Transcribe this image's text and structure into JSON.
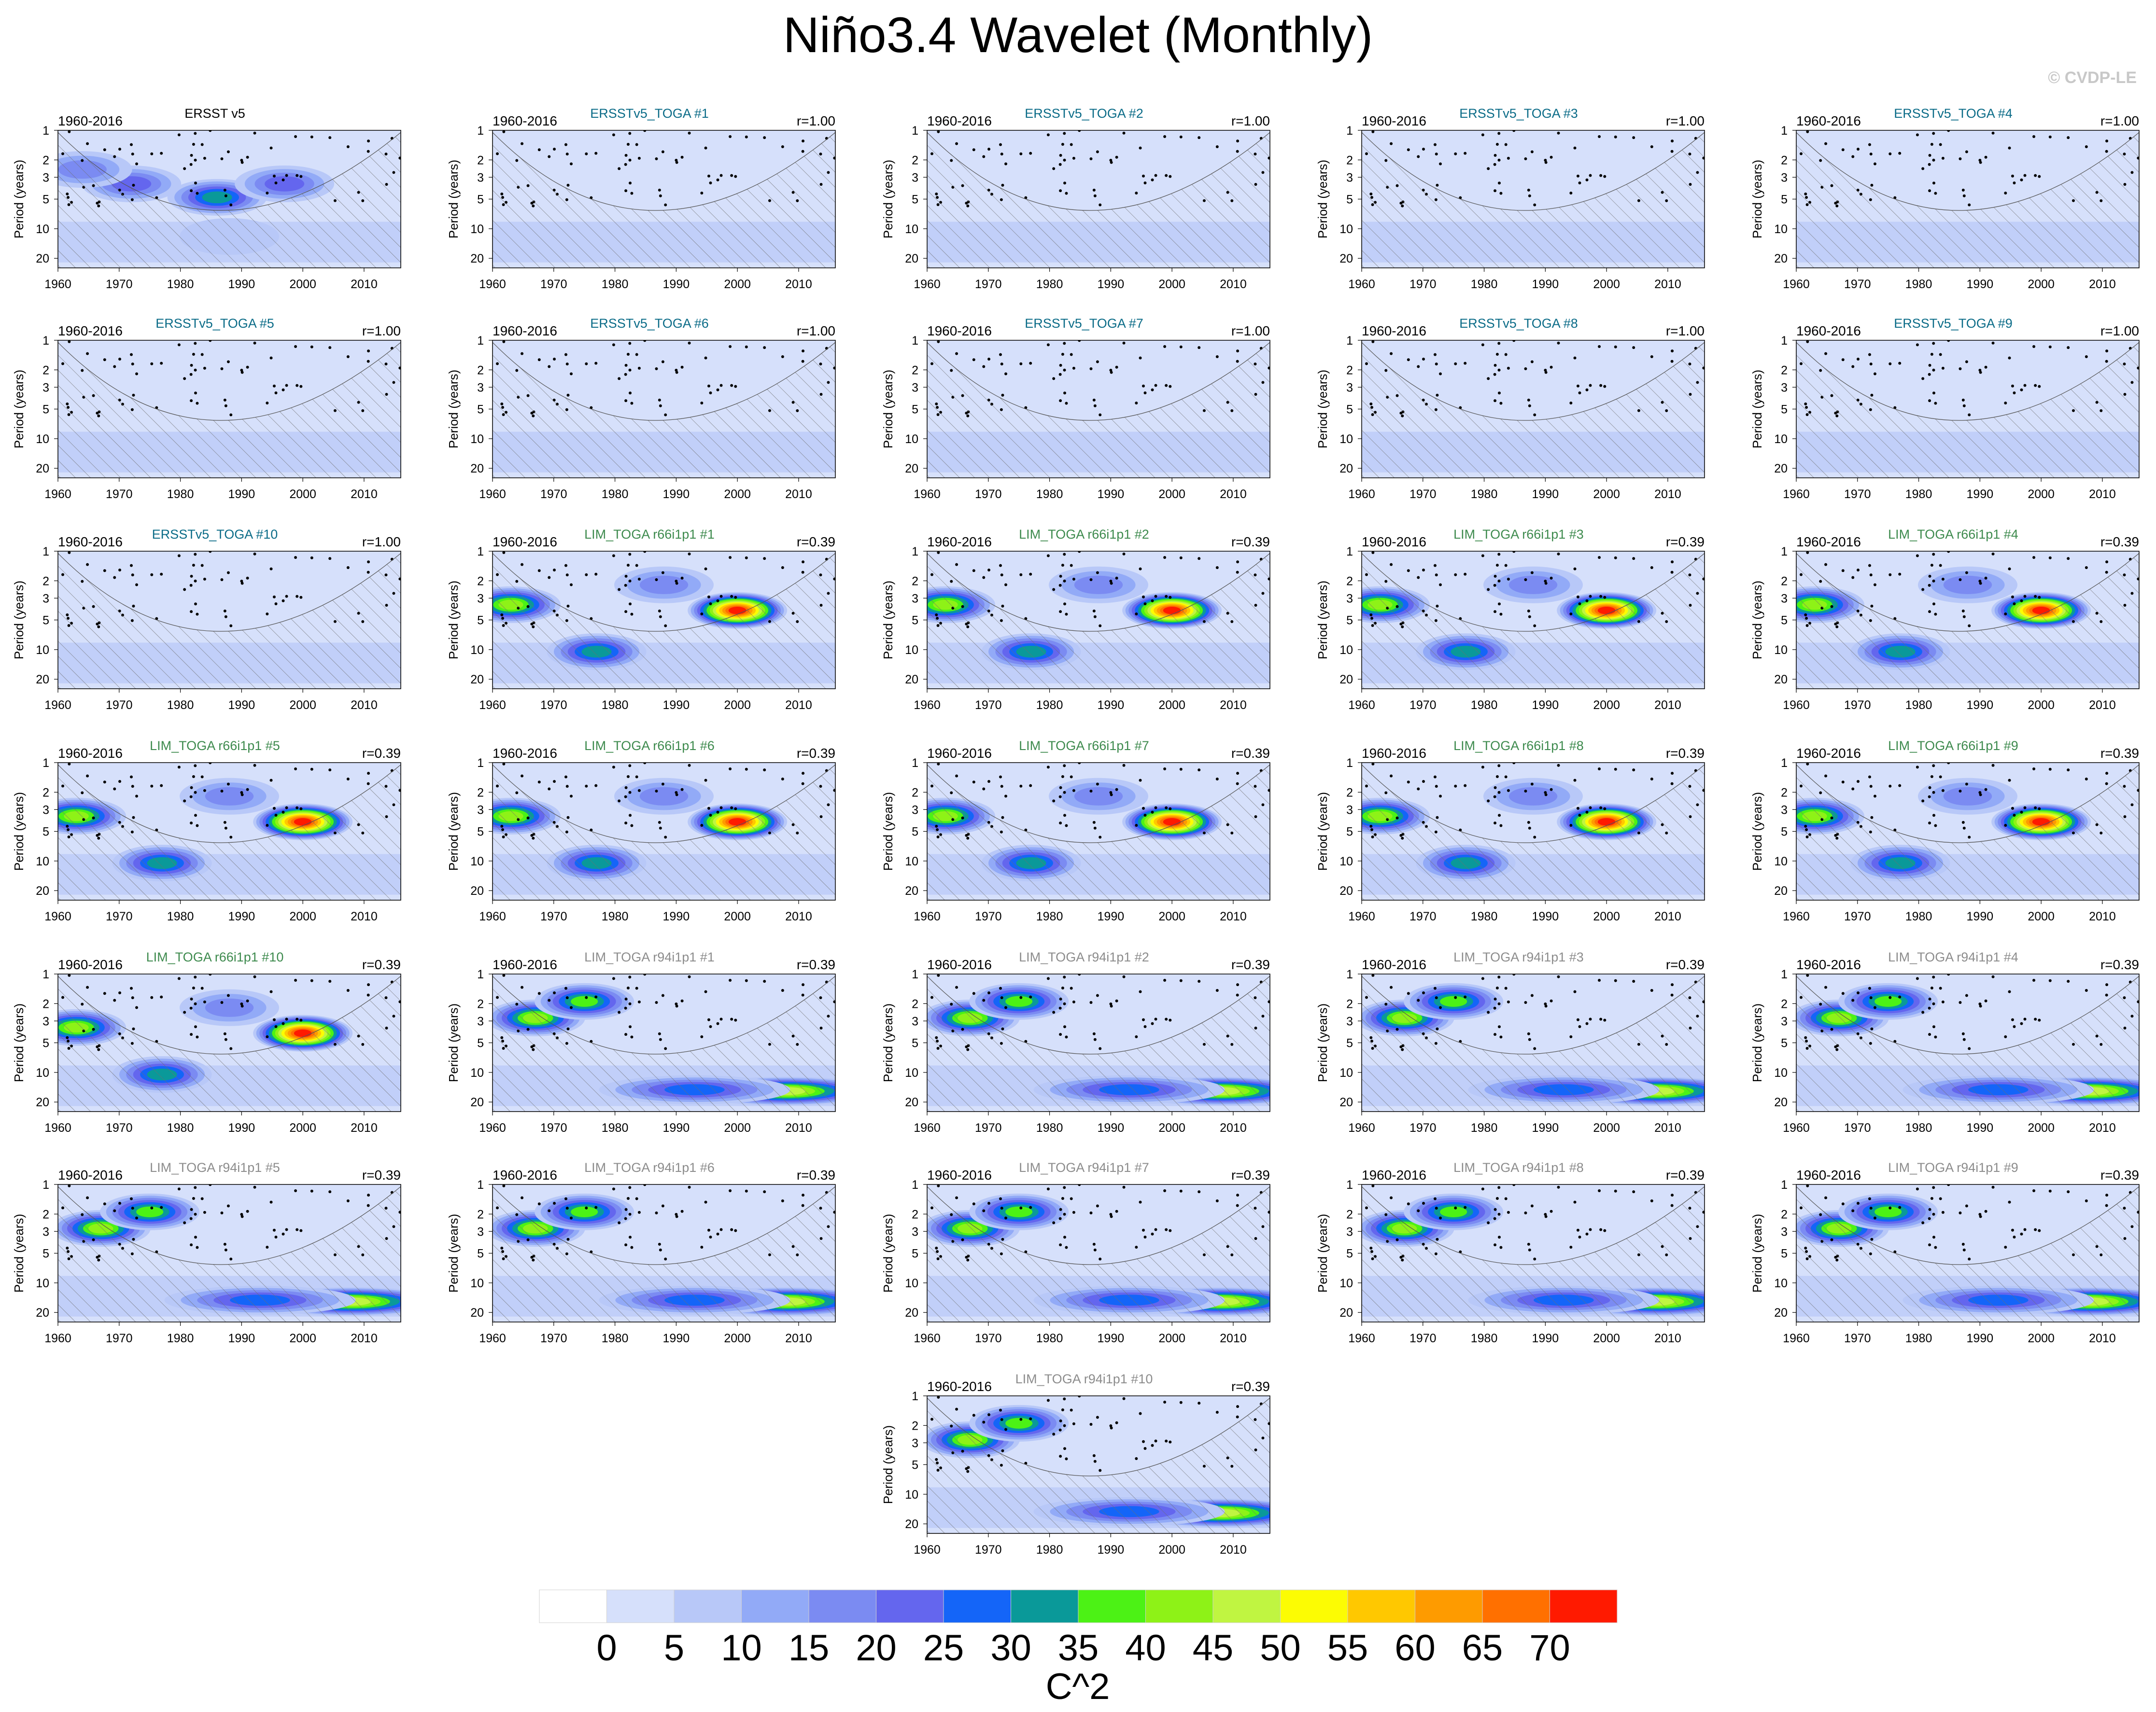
{
  "title": "Niño3.4 Wavelet (Monthly)",
  "credit": "© CVDP-LE",
  "colorbar": {
    "title": "C^2",
    "labels": [
      "0",
      "5",
      "10",
      "15",
      "20",
      "25",
      "30",
      "35",
      "40",
      "45",
      "50",
      "55",
      "60",
      "65",
      "70"
    ],
    "colors": [
      "#ffffff",
      "#d6e0fb",
      "#b8c8f8",
      "#92aaf7",
      "#7b8bf2",
      "#6466ee",
      "#1465f8",
      "#0a9999",
      "#4cf215",
      "#8ef217",
      "#c0f541",
      "#fcfc03",
      "#ffc800",
      "#fe9b00",
      "#ff7000",
      "#ff1a00"
    ]
  },
  "colors": {
    "obs_title": "#000000",
    "ersst_title": "#0a6b87",
    "r66_title": "#3d8a4d",
    "r94_title": "#8c8c8c",
    "hatch": "#6e6e6e"
  },
  "chart_data": {
    "type": "heatmap",
    "x_axis": {
      "ticks": [
        1960,
        1970,
        1980,
        1990,
        2000,
        2010
      ],
      "range": [
        1960,
        2016
      ]
    },
    "y_axis": {
      "label": "Period (years)",
      "scale": "log",
      "reversed": true,
      "ticks": [
        1,
        2,
        3,
        5,
        10,
        20
      ],
      "range": [
        1,
        25
      ]
    },
    "panels": [
      {
        "period": "1960-2016",
        "name": "ERSST v5",
        "r": "",
        "group": "obs"
      },
      {
        "period": "1960-2016",
        "name": "ERSSTv5_TOGA #1",
        "r": "r=1.00",
        "group": "ersst"
      },
      {
        "period": "1960-2016",
        "name": "ERSSTv5_TOGA #2",
        "r": "r=1.00",
        "group": "ersst"
      },
      {
        "period": "1960-2016",
        "name": "ERSSTv5_TOGA #3",
        "r": "r=1.00",
        "group": "ersst"
      },
      {
        "period": "1960-2016",
        "name": "ERSSTv5_TOGA #4",
        "r": "r=1.00",
        "group": "ersst"
      },
      {
        "period": "1960-2016",
        "name": "ERSSTv5_TOGA #5",
        "r": "r=1.00",
        "group": "ersst"
      },
      {
        "period": "1960-2016",
        "name": "ERSSTv5_TOGA #6",
        "r": "r=1.00",
        "group": "ersst"
      },
      {
        "period": "1960-2016",
        "name": "ERSSTv5_TOGA #7",
        "r": "r=1.00",
        "group": "ersst"
      },
      {
        "period": "1960-2016",
        "name": "ERSSTv5_TOGA #8",
        "r": "r=1.00",
        "group": "ersst"
      },
      {
        "period": "1960-2016",
        "name": "ERSSTv5_TOGA #9",
        "r": "r=1.00",
        "group": "ersst"
      },
      {
        "period": "1960-2016",
        "name": "ERSSTv5_TOGA #10",
        "r": "r=1.00",
        "group": "ersst"
      },
      {
        "period": "1960-2016",
        "name": "LIM_TOGA r66i1p1 #1",
        "r": "r=0.39",
        "group": "r66"
      },
      {
        "period": "1960-2016",
        "name": "LIM_TOGA r66i1p1 #2",
        "r": "r=0.39",
        "group": "r66"
      },
      {
        "period": "1960-2016",
        "name": "LIM_TOGA r66i1p1 #3",
        "r": "r=0.39",
        "group": "r66"
      },
      {
        "period": "1960-2016",
        "name": "LIM_TOGA r66i1p1 #4",
        "r": "r=0.39",
        "group": "r66"
      },
      {
        "period": "1960-2016",
        "name": "LIM_TOGA r66i1p1 #5",
        "r": "r=0.39",
        "group": "r66"
      },
      {
        "period": "1960-2016",
        "name": "LIM_TOGA r66i1p1 #6",
        "r": "r=0.39",
        "group": "r66"
      },
      {
        "period": "1960-2016",
        "name": "LIM_TOGA r66i1p1 #7",
        "r": "r=0.39",
        "group": "r66"
      },
      {
        "period": "1960-2016",
        "name": "LIM_TOGA r66i1p1 #8",
        "r": "r=0.39",
        "group": "r66"
      },
      {
        "period": "1960-2016",
        "name": "LIM_TOGA r66i1p1 #9",
        "r": "r=0.39",
        "group": "r66"
      },
      {
        "period": "1960-2016",
        "name": "LIM_TOGA r66i1p1 #10",
        "r": "r=0.39",
        "group": "r66"
      },
      {
        "period": "1960-2016",
        "name": "LIM_TOGA r94i1p1 #1",
        "r": "r=0.39",
        "group": "r94"
      },
      {
        "period": "1960-2016",
        "name": "LIM_TOGA r94i1p1 #2",
        "r": "r=0.39",
        "group": "r94"
      },
      {
        "period": "1960-2016",
        "name": "LIM_TOGA r94i1p1 #3",
        "r": "r=0.39",
        "group": "r94"
      },
      {
        "period": "1960-2016",
        "name": "LIM_TOGA r94i1p1 #4",
        "r": "r=0.39",
        "group": "r94"
      },
      {
        "period": "1960-2016",
        "name": "LIM_TOGA r94i1p1 #5",
        "r": "r=0.39",
        "group": "r94"
      },
      {
        "period": "1960-2016",
        "name": "LIM_TOGA r94i1p1 #6",
        "r": "r=0.39",
        "group": "r94"
      },
      {
        "period": "1960-2016",
        "name": "LIM_TOGA r94i1p1 #7",
        "r": "r=0.39",
        "group": "r94"
      },
      {
        "period": "1960-2016",
        "name": "LIM_TOGA r94i1p1 #8",
        "r": "r=0.39",
        "group": "r94"
      },
      {
        "period": "1960-2016",
        "name": "LIM_TOGA r94i1p1 #9",
        "r": "r=0.39",
        "group": "r94"
      },
      {
        "period": "1960-2016",
        "name": "LIM_TOGA r94i1p1 #10",
        "r": "r=0.39",
        "group": "r94"
      }
    ],
    "features": {
      "obs": [
        {
          "year": 1986,
          "period": 4.8,
          "level": 7
        },
        {
          "year": 1972,
          "period": 3.5,
          "level": 5
        },
        {
          "year": 1997,
          "period": 3.5,
          "level": 5
        },
        {
          "year": 1964,
          "period": 2.5,
          "level": 4
        },
        {
          "year": 1988,
          "period": 12,
          "level": 2
        }
      ],
      "r66": [
        {
          "year": 2000,
          "period": 4.0,
          "level": 15
        },
        {
          "year": 1963,
          "period": 3.5,
          "level": 9
        },
        {
          "year": 1977,
          "period": 10.5,
          "level": 7
        },
        {
          "year": 1988,
          "period": 2.2,
          "level": 4
        }
      ],
      "r94": [
        {
          "year": 2008,
          "period": 15.5,
          "level": 10
        },
        {
          "year": 1967,
          "period": 2.8,
          "level": 9
        },
        {
          "year": 1975,
          "period": 1.9,
          "level": 8
        },
        {
          "year": 1993,
          "period": 15,
          "level": 6
        }
      ]
    }
  }
}
